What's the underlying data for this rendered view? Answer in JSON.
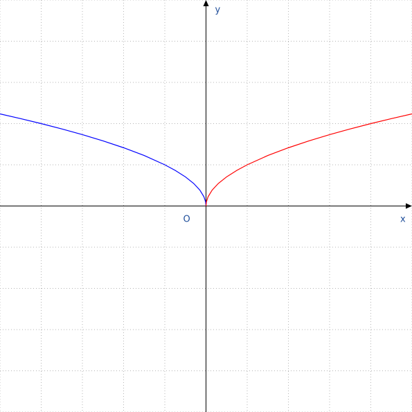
{
  "chart_data": {
    "type": "line",
    "title": "",
    "xlabel": "x",
    "ylabel": "y",
    "origin_label": "O",
    "xlim": [
      -5,
      5
    ],
    "ylim": [
      -5,
      5
    ],
    "grid": true,
    "grid_step": 1,
    "series": [
      {
        "color": "#0000ff",
        "x": [
          -5,
          -4.5,
          -4,
          -3.5,
          -3,
          -2.5,
          -2,
          -1.5,
          -1,
          -0.75,
          -0.5,
          -0.3,
          -0.15,
          -0.05,
          -0.01,
          0
        ],
        "y": [
          2.236,
          2.121,
          2.0,
          1.871,
          1.732,
          1.581,
          1.414,
          1.225,
          1.0,
          0.866,
          0.707,
          0.548,
          0.387,
          0.224,
          0.1,
          0
        ]
      },
      {
        "color": "#ff0000",
        "x": [
          0,
          0.01,
          0.05,
          0.15,
          0.3,
          0.5,
          0.75,
          1,
          1.5,
          2,
          2.5,
          3,
          3.5,
          4,
          4.5,
          5
        ],
        "y": [
          0,
          0.1,
          0.224,
          0.387,
          0.548,
          0.707,
          0.866,
          1.0,
          1.225,
          1.414,
          1.581,
          1.732,
          1.871,
          2.0,
          2.121,
          2.236
        ]
      }
    ]
  }
}
